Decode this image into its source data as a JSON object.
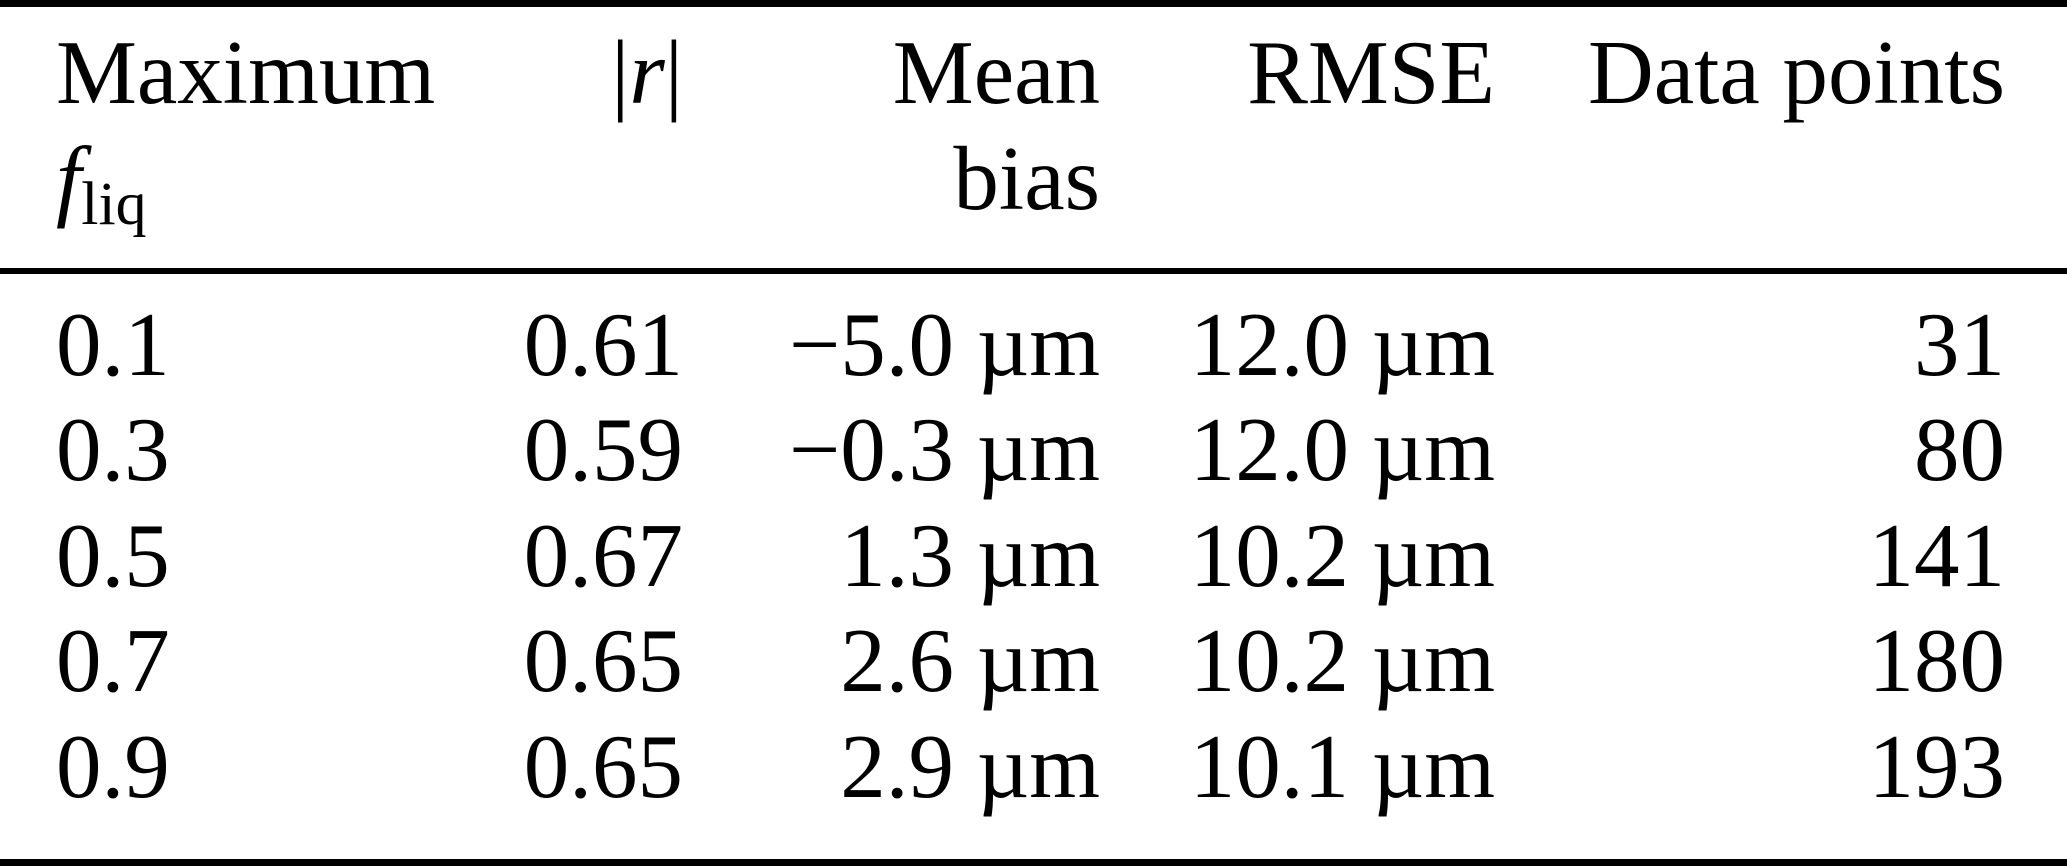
{
  "table": {
    "header": {
      "col1": {
        "line1": "Maximum",
        "symbol_base": "f",
        "symbol_sub": "liq"
      },
      "col2": {
        "bar_left": "|",
        "symbol": "r",
        "bar_right": "|"
      },
      "col3": {
        "line1": "Mean",
        "line2": "bias"
      },
      "col4": {
        "label": "RMSE"
      },
      "col5": {
        "label": "Data points"
      }
    },
    "rows": [
      {
        "max_fliq": "0.1",
        "abs_r": "0.61",
        "mean_bias": "−5.0 µm",
        "rmse": "12.0 µm",
        "data_points": "31"
      },
      {
        "max_fliq": "0.3",
        "abs_r": "0.59",
        "mean_bias": "−0.3 µm",
        "rmse": "12.0 µm",
        "data_points": "80"
      },
      {
        "max_fliq": "0.5",
        "abs_r": "0.67",
        "mean_bias": "1.3 µm",
        "rmse": "10.2 µm",
        "data_points": "141"
      },
      {
        "max_fliq": "0.7",
        "abs_r": "0.65",
        "mean_bias": "2.6 µm",
        "rmse": "10.2 µm",
        "data_points": "180"
      },
      {
        "max_fliq": "0.9",
        "abs_r": "0.65",
        "mean_bias": "2.9 µm",
        "rmse": "10.1 µm",
        "data_points": "193"
      }
    ],
    "colors": {
      "text": "#000000",
      "background": "#ffffff",
      "rule": "#000000"
    }
  }
}
